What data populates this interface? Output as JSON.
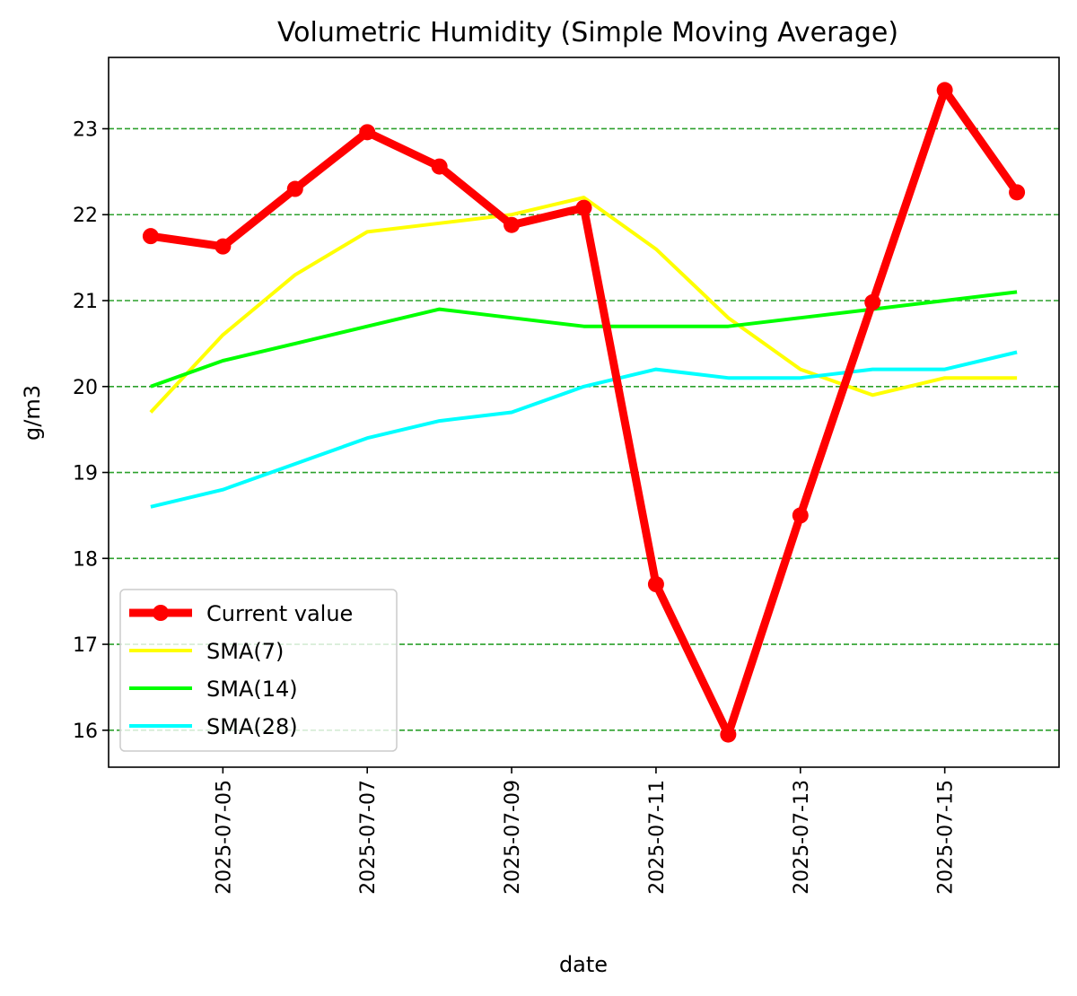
{
  "chart_data": {
    "type": "line",
    "title": "Volumetric Humidity (Simple Moving Average)",
    "xlabel": "date",
    "ylabel": "g/m3",
    "x": [
      "2025-07-04",
      "2025-07-05",
      "2025-07-06",
      "2025-07-07",
      "2025-07-08",
      "2025-07-09",
      "2025-07-10",
      "2025-07-11",
      "2025-07-12",
      "2025-07-13",
      "2025-07-14",
      "2025-07-15",
      "2025-07-16"
    ],
    "x_ticks": [
      "2025-07-05",
      "2025-07-07",
      "2025-07-09",
      "2025-07-11",
      "2025-07-13",
      "2025-07-15"
    ],
    "xlim": [
      "2025-07-03T10:00",
      "2025-07-16T14:00"
    ],
    "y_ticks": [
      16,
      17,
      18,
      19,
      20,
      21,
      22,
      23
    ],
    "ylim": [
      15.57,
      23.83
    ],
    "grid": "horizontal dashed",
    "grid_color": "#2ca02c",
    "legend_position": "lower-left",
    "series": [
      {
        "name": "Current value",
        "color": "#ff0000",
        "marker": "circle",
        "values": [
          21.75,
          21.63,
          22.3,
          22.96,
          22.56,
          21.88,
          22.08,
          17.7,
          15.95,
          18.5,
          20.98,
          23.45,
          22.26
        ]
      },
      {
        "name": "SMA(7)",
        "color": "#ffff00",
        "values": [
          19.7,
          20.6,
          21.3,
          21.8,
          21.9,
          22.0,
          22.2,
          21.6,
          20.8,
          20.2,
          19.9,
          20.1,
          20.1
        ]
      },
      {
        "name": "SMA(14)",
        "color": "#00ff00",
        "values": [
          20.0,
          20.3,
          20.5,
          20.7,
          20.9,
          20.8,
          20.7,
          20.7,
          20.7,
          20.8,
          20.9,
          21.0,
          21.1
        ]
      },
      {
        "name": "SMA(28)",
        "color": "#00ffff",
        "values": [
          18.6,
          18.8,
          19.1,
          19.4,
          19.6,
          19.7,
          20.0,
          20.2,
          20.1,
          20.1,
          20.2,
          20.2,
          20.4
        ]
      }
    ]
  }
}
